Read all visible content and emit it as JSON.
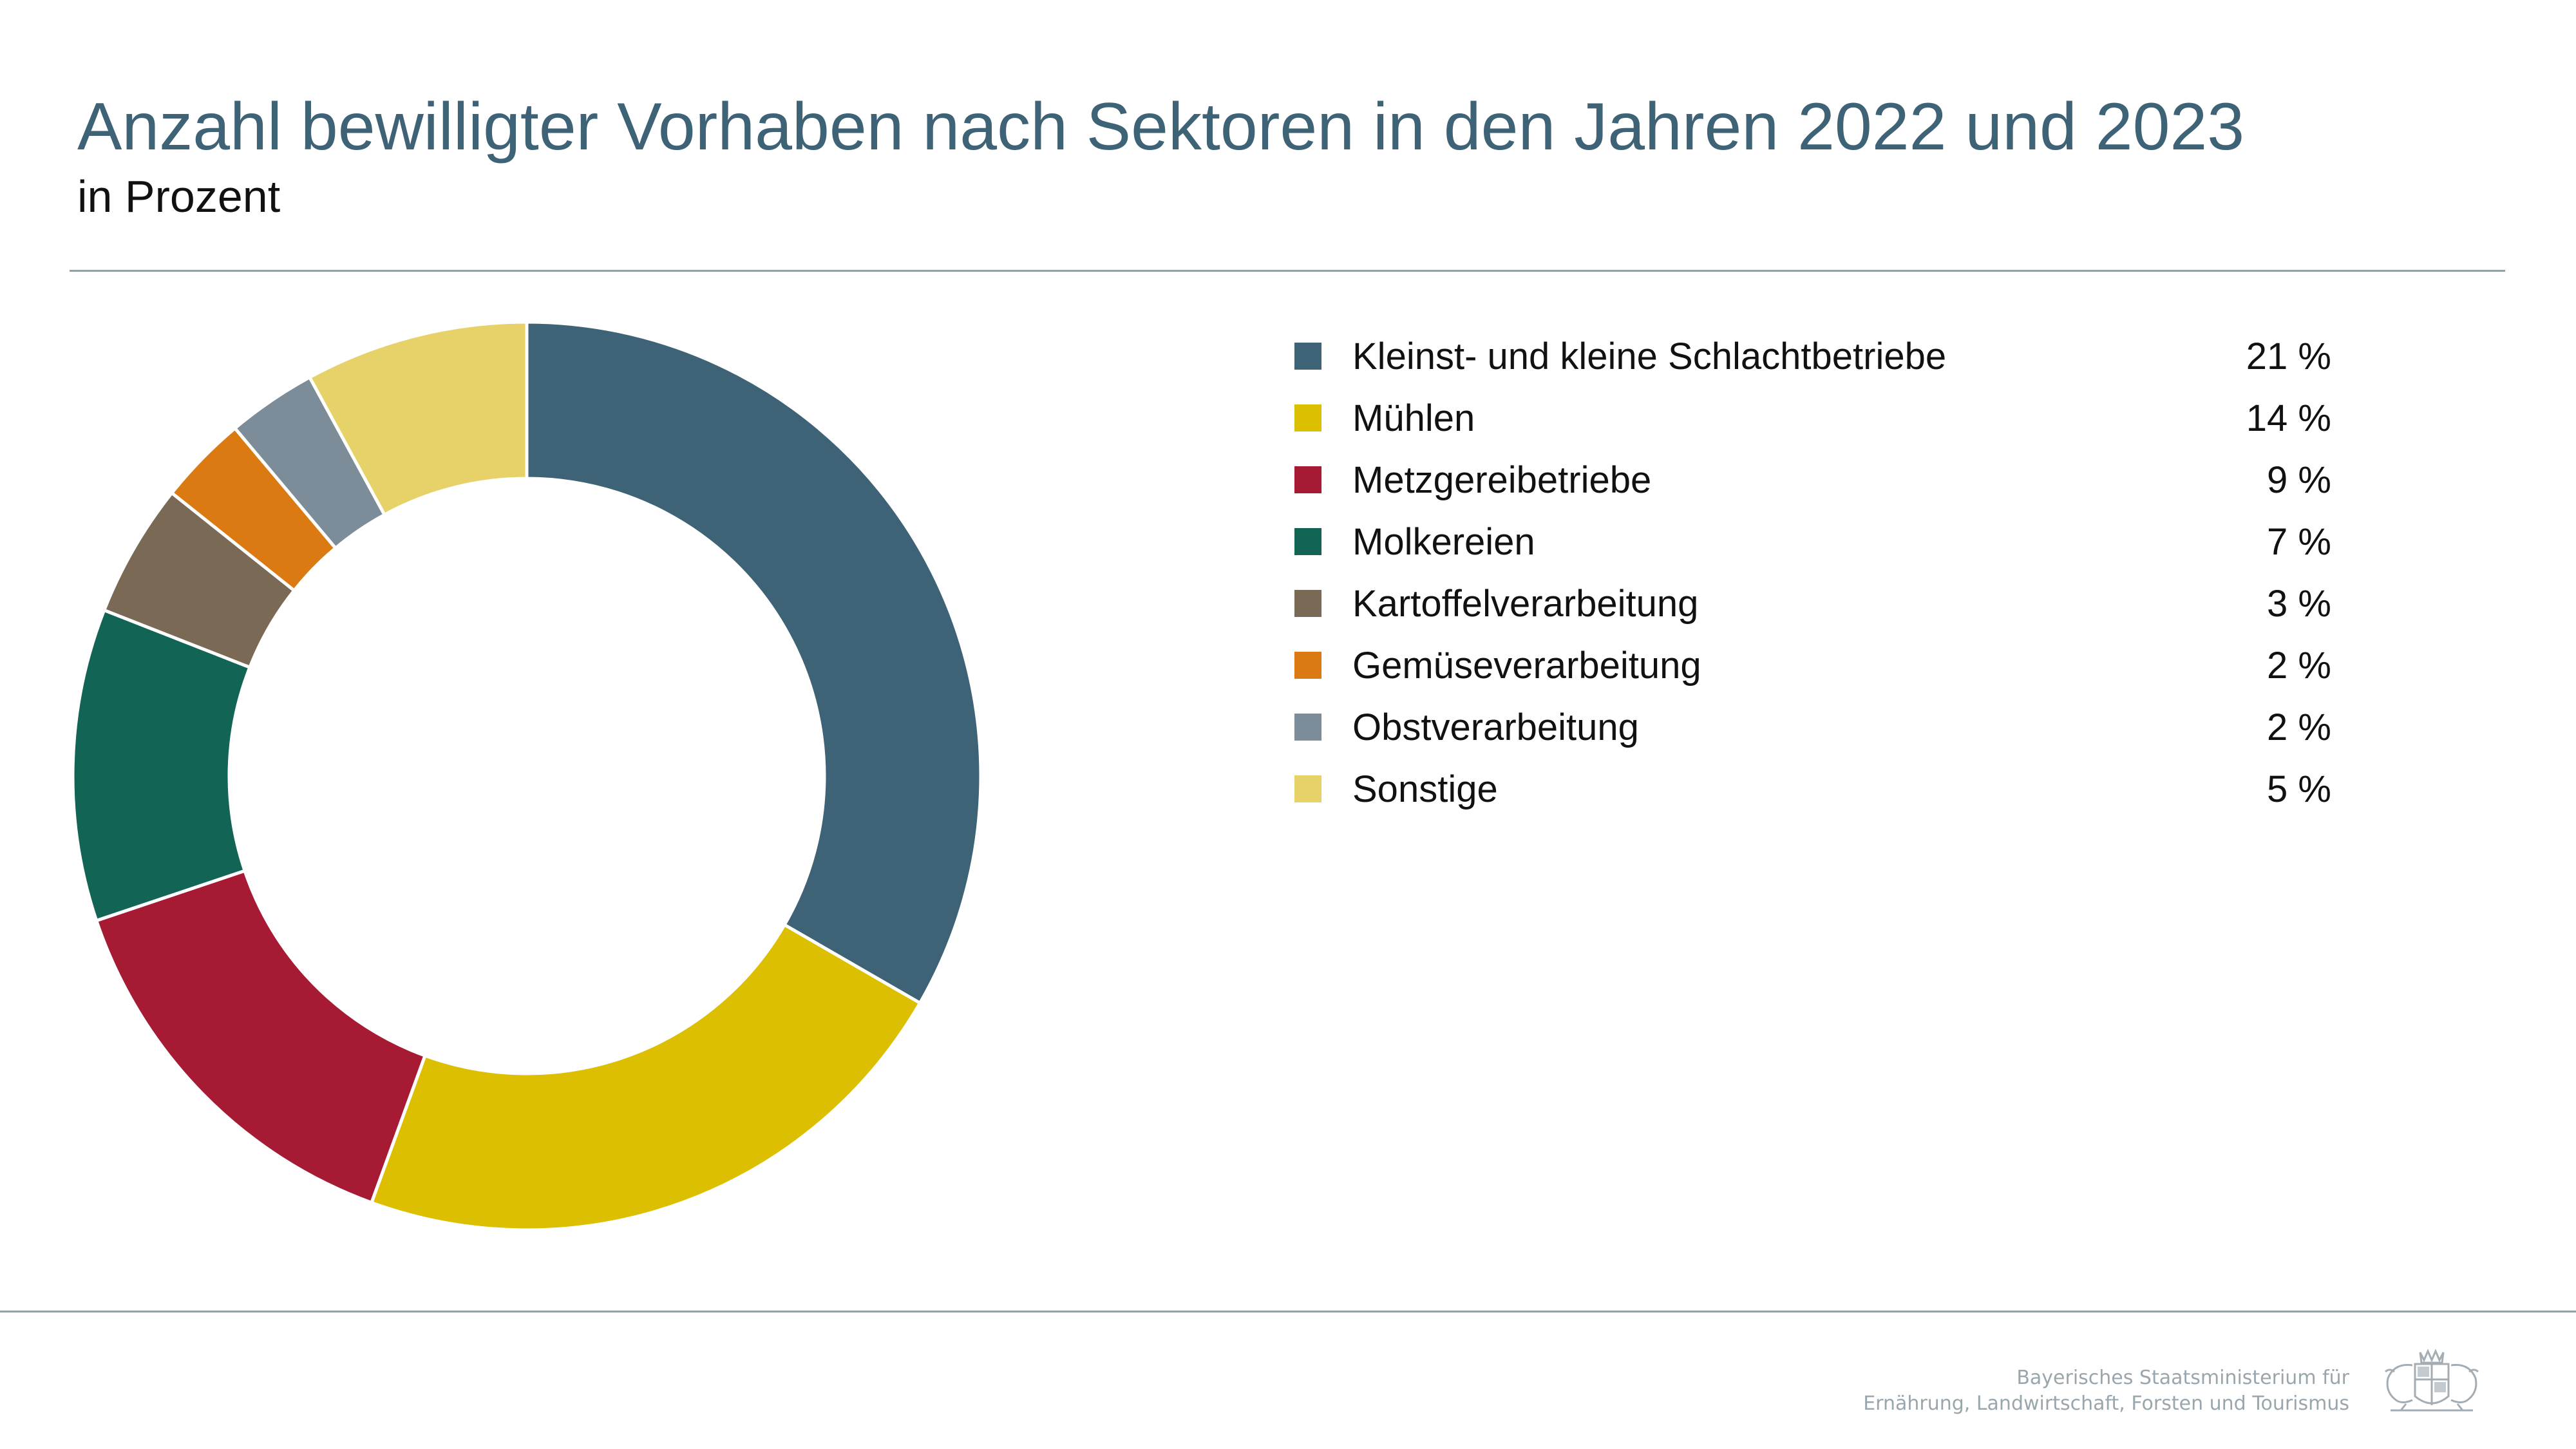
{
  "header": {
    "title": "Anzahl bewilligter Vorhaben nach Sektoren in den Jahren 2022 und 2023",
    "subtitle": "in Prozent"
  },
  "chart_data": {
    "type": "pie",
    "donut": true,
    "title": "Anzahl bewilligter Vorhaben nach Sektoren in den Jahren 2022 und 2023",
    "subtitle": "in Prozent",
    "legend_position": "right",
    "slices": [
      {
        "label": "Kleinst- und kleine Schlachtbetriebe",
        "value": 21,
        "value_label": "21 %",
        "color": "#3e6276"
      },
      {
        "label": "Mühlen",
        "value": 14,
        "value_label": "14 %",
        "color": "#dcbf00"
      },
      {
        "label": "Metzgereibetriebe",
        "value": 9,
        "value_label": "9 %",
        "color": "#a61a34"
      },
      {
        "label": "Molkereien",
        "value": 7,
        "value_label": "7 %",
        "color": "#126454"
      },
      {
        "label": "Kartoffelverarbeitung",
        "value": 3,
        "value_label": "3 %",
        "color": "#7a6a55"
      },
      {
        "label": "Gemüseverarbeitung",
        "value": 2,
        "value_label": "2 %",
        "color": "#db7a12"
      },
      {
        "label": "Obstverarbeitung",
        "value": 2,
        "value_label": "2 %",
        "color": "#7c8c98"
      },
      {
        "label": "Sonstige",
        "value": 5,
        "value_label": "5 %",
        "color": "#e7d169"
      }
    ]
  },
  "footer": {
    "ministry_line1": "Bayerisches Staatsministerium für",
    "ministry_line2": "Ernährung, Landwirtschaft, Forsten und Tourismus",
    "logo_icon": "bavarian-coat-of-arms-icon"
  }
}
